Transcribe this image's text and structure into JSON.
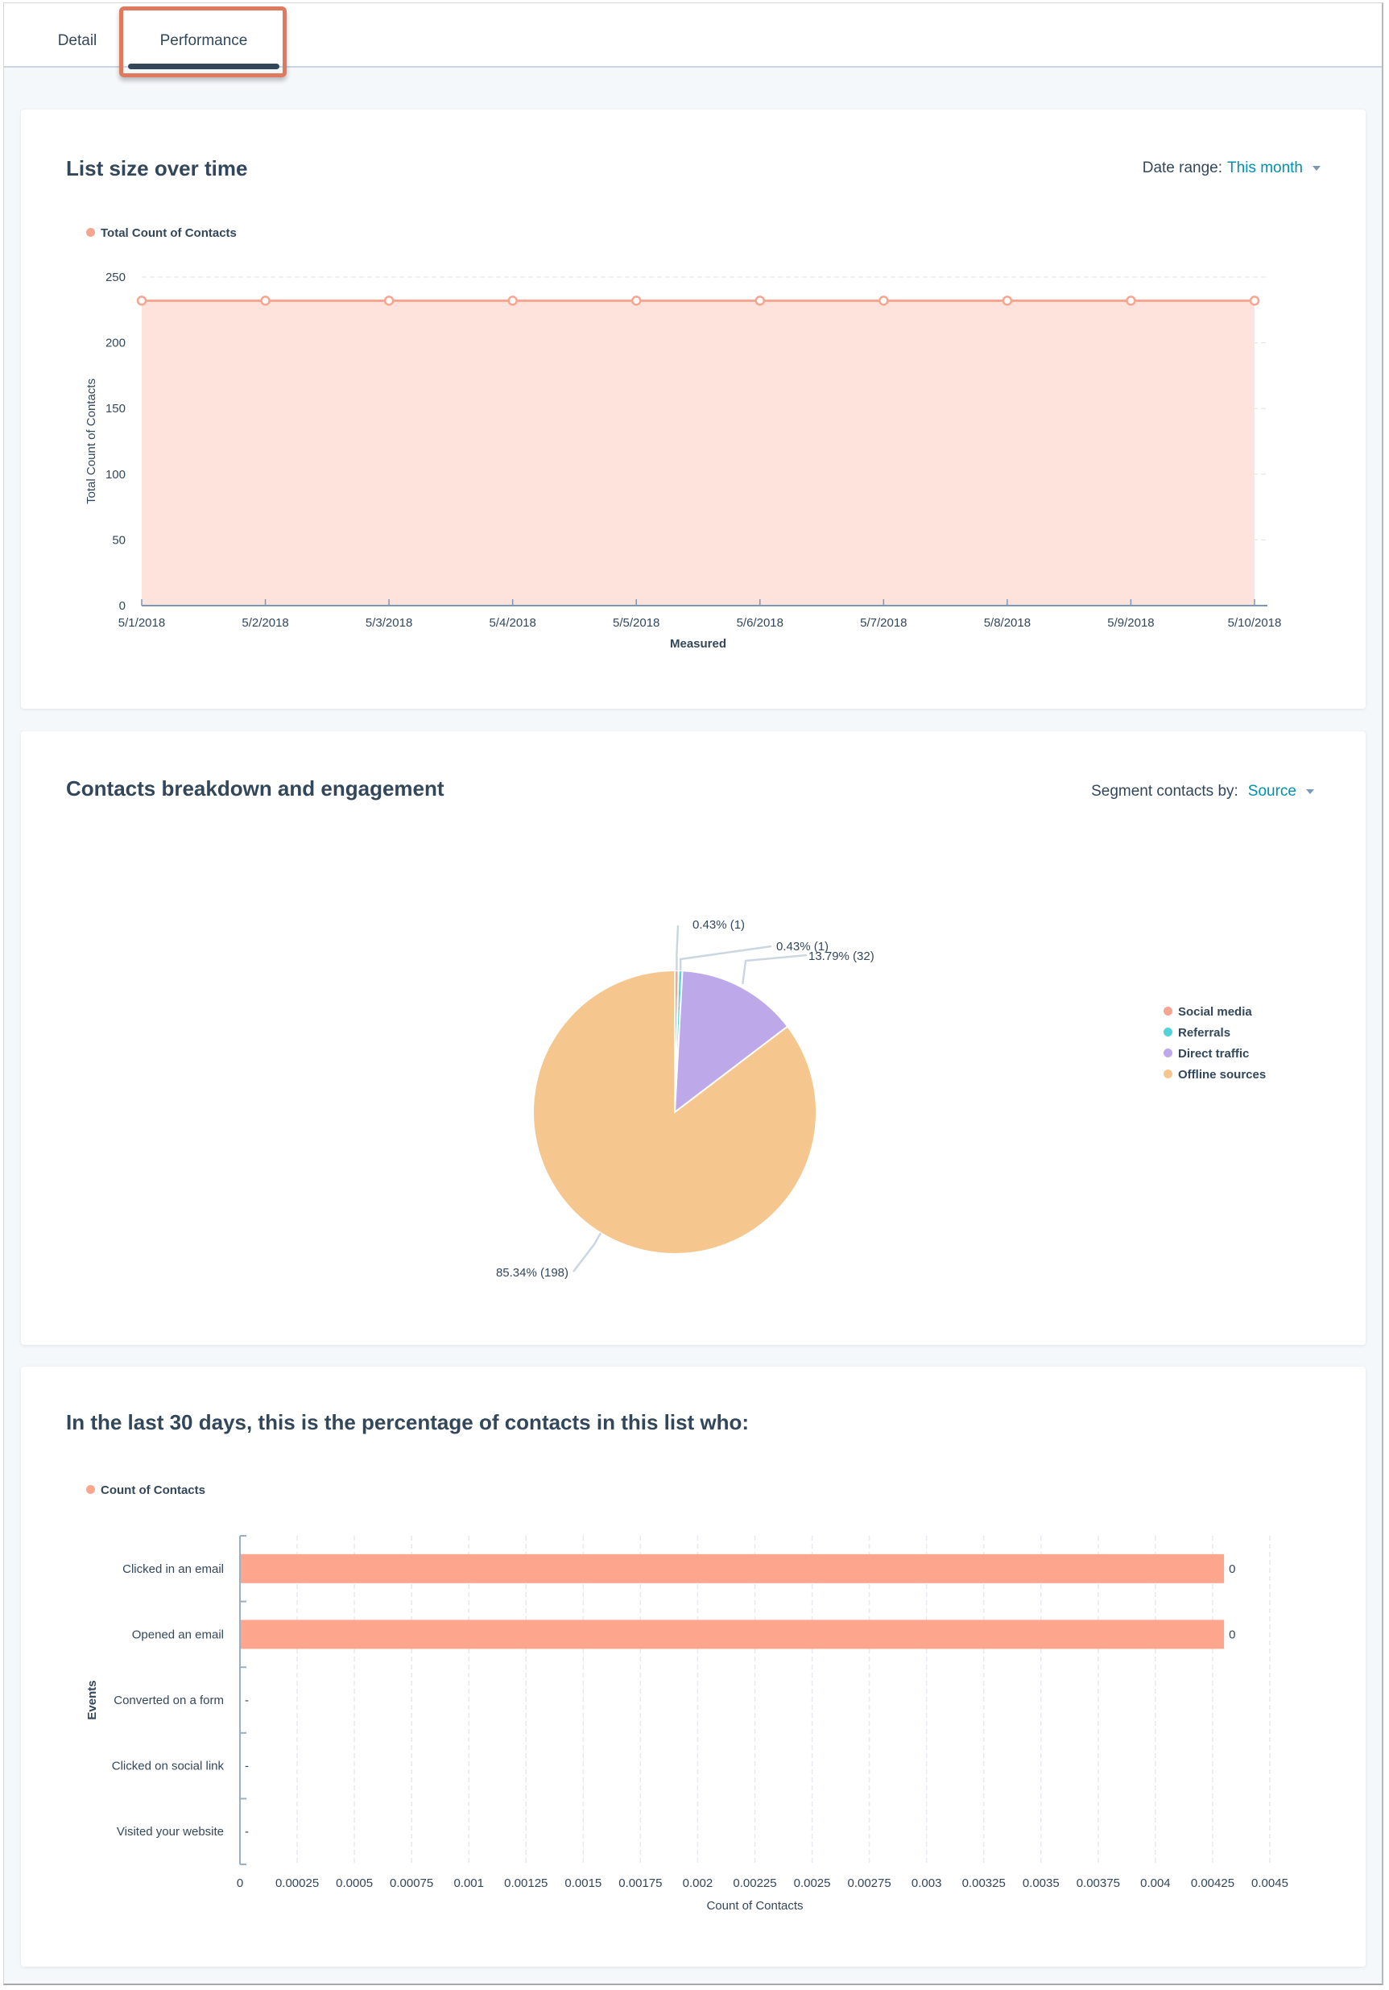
{
  "tabs": [
    {
      "label": "Detail",
      "active": false
    },
    {
      "label": "Performance",
      "active": true
    }
  ],
  "list_size": {
    "title": "List size over time",
    "date_range_label": "Date range:",
    "date_range_value": "This month",
    "legend": "Total Count of Contacts"
  },
  "breakdown": {
    "title": "Contacts breakdown and engagement",
    "segment_label": "Segment contacts by:",
    "segment_value": "Source",
    "legend": [
      "Social media",
      "Referrals",
      "Direct traffic",
      "Offline sources"
    ]
  },
  "engagement": {
    "title": "In the last 30 days, this is the percentage of contacts in this list who:",
    "legend": "Count of Contacts"
  },
  "colors": {
    "accent": "#ff8f59",
    "line": "#f8a58f",
    "area": "#fee3dc",
    "social": "#f8a58f",
    "referrals": "#51d3d9",
    "direct": "#bda9ea",
    "offline": "#f5c78e",
    "bar": "#fea58e",
    "link": "#0091ae",
    "text": "#33475b"
  },
  "chart_data": [
    {
      "type": "area",
      "title": "List size over time",
      "series": [
        {
          "name": "Total Count of Contacts",
          "values": [
            232,
            232,
            232,
            232,
            232,
            232,
            232,
            232,
            232,
            232
          ]
        }
      ],
      "categories": [
        "5/1/2018",
        "5/2/2018",
        "5/3/2018",
        "5/4/2018",
        "5/5/2018",
        "5/6/2018",
        "5/7/2018",
        "5/8/2018",
        "5/9/2018",
        "5/10/2018"
      ],
      "xlabel": "Measured",
      "ylabel": "Total Count of Contacts",
      "ylim": [
        0,
        250
      ],
      "yticks": [
        "0",
        "50",
        "100",
        "150",
        "200",
        "250"
      ],
      "grid": true,
      "legend": "top-left"
    },
    {
      "type": "pie",
      "title": "Contacts breakdown and engagement",
      "slices": [
        {
          "name": "Social media",
          "value": 1,
          "label": "0.43% (1)"
        },
        {
          "name": "Referrals",
          "value": 1,
          "label": "0.43% (1)"
        },
        {
          "name": "Direct traffic",
          "value": 32,
          "label": "13.79% (32)"
        },
        {
          "name": "Offline sources",
          "value": 198,
          "label": "85.34% (198)"
        }
      ],
      "legend": "right"
    },
    {
      "type": "bar",
      "orientation": "horizontal",
      "title": "In the last 30 days, this is the percentage of contacts in this list who:",
      "categories": [
        "Clicked in an email",
        "Opened an email",
        "Converted on a form",
        "Clicked on social link",
        "Visited your website"
      ],
      "series": [
        {
          "name": "Count of Contacts",
          "values": [
            0.0043,
            0.0043,
            null,
            null,
            null
          ]
        }
      ],
      "data_labels": [
        "0",
        "0",
        "-",
        "-",
        "-"
      ],
      "xlabel": "Count of Contacts",
      "ylabel": "Events",
      "xlim": [
        0,
        0.0045
      ],
      "xticks": [
        "0",
        "0.00025",
        "0.0005",
        "0.00075",
        "0.001",
        "0.00125",
        "0.0015",
        "0.00175",
        "0.002",
        "0.00225",
        "0.0025",
        "0.00275",
        "0.003",
        "0.00325",
        "0.0035",
        "0.00375",
        "0.004",
        "0.00425",
        "0.0045"
      ],
      "grid": true,
      "legend": "top-left"
    }
  ]
}
